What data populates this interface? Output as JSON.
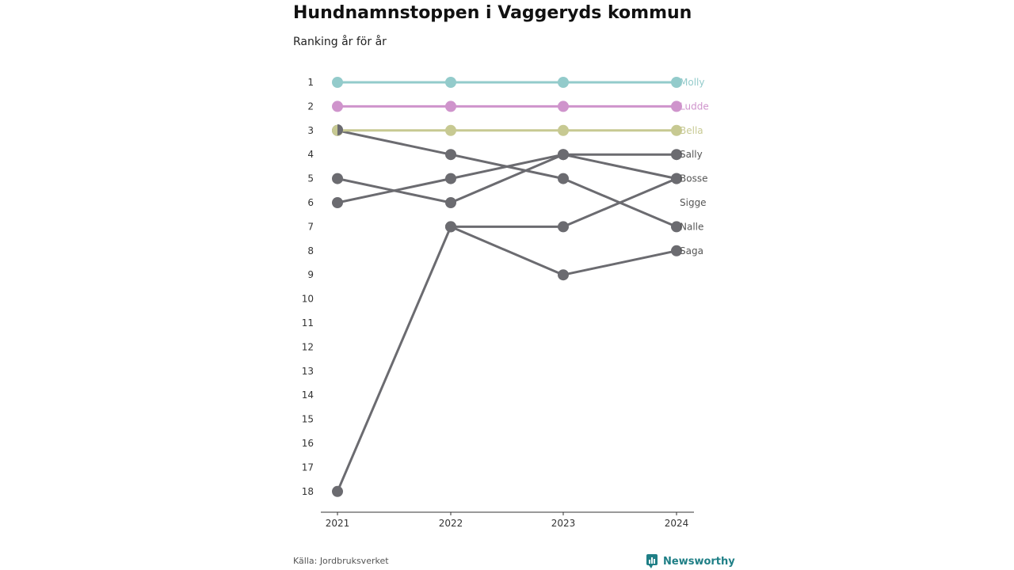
{
  "title": "Hundnamnstoppen i Vaggeryds kommun",
  "subtitle": "Ranking år för år",
  "source": "Källa: Jordbruksverket",
  "brand": "Newsworthy",
  "colors": {
    "highlight_teal": "#93cbcb",
    "highlight_pink": "#cf94cc",
    "highlight_olive": "#c7c992",
    "other": "#6b6b70",
    "brand": "#1f7f86"
  },
  "chart_data": {
    "type": "line",
    "x": [
      2021,
      2022,
      2023,
      2024
    ],
    "ylim": [
      1,
      18
    ],
    "y_reversed": true,
    "y_ticks": [
      1,
      2,
      3,
      4,
      5,
      6,
      7,
      8,
      9,
      10,
      11,
      12,
      13,
      14,
      15,
      16,
      17,
      18
    ],
    "series": [
      {
        "name": "Molly",
        "values": [
          1,
          1,
          1,
          1
        ],
        "color": "#93cbcb"
      },
      {
        "name": "Ludde",
        "values": [
          2,
          2,
          2,
          2
        ],
        "color": "#cf94cc"
      },
      {
        "name": "Bella",
        "values": [
          3,
          3,
          3,
          3
        ],
        "color": "#c7c992"
      },
      {
        "name": "Sally",
        "values": [
          6,
          5,
          4,
          4
        ],
        "color": "#6b6b70"
      },
      {
        "name": "Bosse",
        "values": [
          5,
          6,
          4,
          5
        ],
        "color": "#6b6b70"
      },
      {
        "name": "Sigge",
        "values": [
          null,
          null,
          null,
          null
        ],
        "color": "#6b6b70"
      },
      {
        "name": "Nalle",
        "values": [
          3,
          4,
          5,
          7
        ],
        "color": "#6b6b70"
      },
      {
        "name": "Saga",
        "values": [
          18,
          7,
          9,
          8
        ],
        "color": "#6b6b70"
      }
    ],
    "extra_path": {
      "values": [
        null,
        7,
        7,
        5
      ],
      "color": "#6b6b70"
    }
  }
}
